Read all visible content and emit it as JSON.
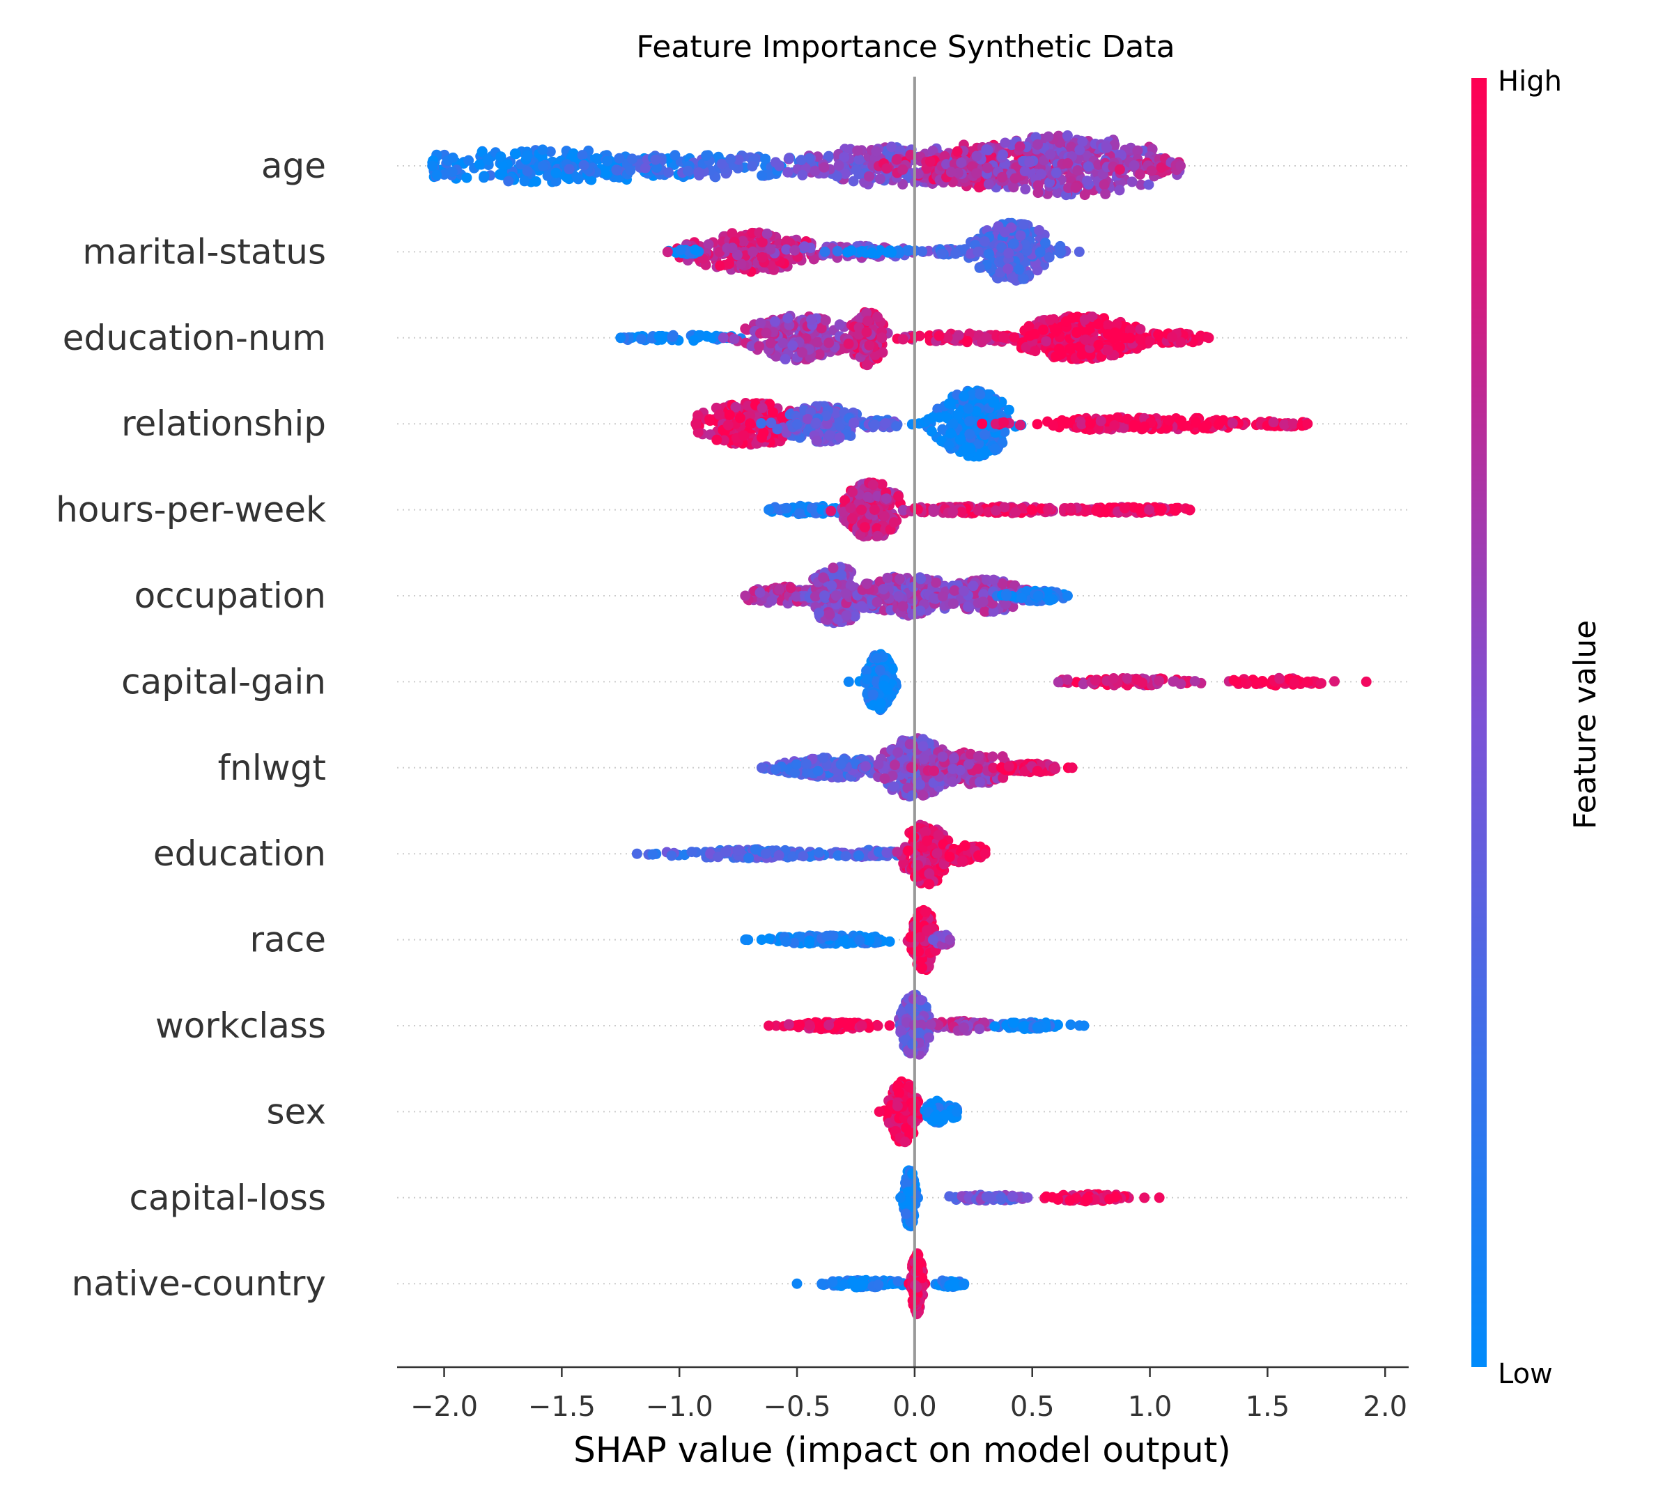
{
  "chart_data": {
    "type": "scatter",
    "subtype": "shap-beeswarm-summary",
    "title": "Feature Importance Synthetic Data",
    "xlabel": "SHAP value (impact on model output)",
    "ylabel": "",
    "xlim": [
      -2.2,
      2.1
    ],
    "xticks": [
      -2.0,
      -1.5,
      -1.0,
      -0.5,
      0.0,
      0.5,
      1.0,
      1.5,
      2.0
    ],
    "xtick_labels": [
      "−2.0",
      "−1.5",
      "−1.0",
      "−0.5",
      "0.0",
      "0.5",
      "1.0",
      "1.5",
      "2.0"
    ],
    "zero_line": 0.0,
    "grid": false,
    "colorbar": {
      "label": "Feature value",
      "high_label": "High",
      "low_label": "Low",
      "low_color": "#008bfb",
      "mid_color": "#7c52d6",
      "high_color": "#ff0052"
    },
    "features": [
      {
        "name": "age",
        "clusters": [
          {
            "center": -1.55,
            "spread": 0.55,
            "width": 0.45,
            "count": 220,
            "color": 0.05
          },
          {
            "center": -0.9,
            "spread": 0.45,
            "width": 0.32,
            "count": 120,
            "color": 0.25
          },
          {
            "center": -0.1,
            "spread": 0.35,
            "width": 0.55,
            "count": 200,
            "color": 0.5
          },
          {
            "center": 0.3,
            "spread": 0.3,
            "width": 0.6,
            "count": 220,
            "color": 0.8
          },
          {
            "center": 0.65,
            "spread": 0.35,
            "width": 0.85,
            "count": 300,
            "color": 0.6
          },
          {
            "center": 1.0,
            "spread": 0.15,
            "width": 0.25,
            "count": 60,
            "color": 0.7
          }
        ],
        "min": -2.05,
        "max": 1.13
      },
      {
        "name": "marital-status",
        "clusters": [
          {
            "center": -0.7,
            "spread": 0.22,
            "width": 0.55,
            "count": 230,
            "color": 0.8
          },
          {
            "center": -0.3,
            "spread": 0.25,
            "width": 0.18,
            "count": 60,
            "color": 0.55
          },
          {
            "center": -0.15,
            "spread": 0.15,
            "width": 0.06,
            "count": 30,
            "color": 0.05
          },
          {
            "center": -0.95,
            "spread": 0.08,
            "width": 0.06,
            "count": 20,
            "color": 0.05
          },
          {
            "center": 0.42,
            "spread": 0.14,
            "width": 0.8,
            "count": 250,
            "color": 0.35
          },
          {
            "center": 0.15,
            "spread": 0.08,
            "width": 0.08,
            "count": 25,
            "color": 0.35
          }
        ],
        "min": -1.05,
        "max": 0.7
      },
      {
        "name": "education-num",
        "clusters": [
          {
            "center": -1.0,
            "spread": 0.25,
            "width": 0.08,
            "count": 50,
            "color": 0.05
          },
          {
            "center": -0.5,
            "spread": 0.18,
            "width": 0.62,
            "count": 230,
            "color": 0.65
          },
          {
            "center": -0.2,
            "spread": 0.06,
            "width": 0.75,
            "count": 120,
            "color": 0.8
          },
          {
            "center": 0.25,
            "spread": 0.25,
            "width": 0.12,
            "count": 70,
            "color": 0.85
          },
          {
            "center": 0.7,
            "spread": 0.22,
            "width": 0.6,
            "count": 300,
            "color": 0.97
          },
          {
            "center": 1.1,
            "spread": 0.12,
            "width": 0.15,
            "count": 60,
            "color": 0.95
          }
        ],
        "min": -1.25,
        "max": 1.25
      },
      {
        "name": "relationship",
        "clusters": [
          {
            "center": -0.7,
            "spread": 0.18,
            "width": 0.6,
            "count": 200,
            "color": 0.9
          },
          {
            "center": -0.4,
            "spread": 0.14,
            "width": 0.5,
            "count": 150,
            "color": 0.4
          },
          {
            "center": -0.15,
            "spread": 0.08,
            "width": 0.12,
            "count": 30,
            "color": 0.35
          },
          {
            "center": 0.25,
            "spread": 0.13,
            "width": 0.92,
            "count": 300,
            "color": 0.04
          },
          {
            "center": 0.95,
            "spread": 0.4,
            "width": 0.18,
            "count": 170,
            "color": 0.97
          },
          {
            "center": 1.55,
            "spread": 0.1,
            "width": 0.08,
            "count": 30,
            "color": 0.97
          }
        ],
        "min": -0.93,
        "max": 1.67
      },
      {
        "name": "hours-per-week",
        "clusters": [
          {
            "center": -0.45,
            "spread": 0.17,
            "width": 0.12,
            "count": 70,
            "color": 0.1
          },
          {
            "center": -0.18,
            "spread": 0.1,
            "width": 0.78,
            "count": 220,
            "color": 0.8
          },
          {
            "center": 0.3,
            "spread": 0.3,
            "width": 0.1,
            "count": 120,
            "color": 0.88
          },
          {
            "center": 0.9,
            "spread": 0.25,
            "width": 0.08,
            "count": 90,
            "color": 0.97
          }
        ],
        "min": -0.62,
        "max": 1.17
      },
      {
        "name": "occupation",
        "clusters": [
          {
            "center": -0.55,
            "spread": 0.14,
            "width": 0.25,
            "count": 80,
            "color": 0.7
          },
          {
            "center": -0.33,
            "spread": 0.1,
            "width": 0.8,
            "count": 180,
            "color": 0.55
          },
          {
            "center": -0.05,
            "spread": 0.2,
            "width": 0.55,
            "count": 200,
            "color": 0.6
          },
          {
            "center": 0.3,
            "spread": 0.15,
            "width": 0.45,
            "count": 150,
            "color": 0.6
          },
          {
            "center": 0.52,
            "spread": 0.1,
            "width": 0.15,
            "count": 60,
            "color": 0.08
          }
        ],
        "min": -0.72,
        "max": 0.65
      },
      {
        "name": "capital-gain",
        "clusters": [
          {
            "center": -0.15,
            "spread": 0.05,
            "width": 0.78,
            "count": 180,
            "color": 0.05
          },
          {
            "center": 0.9,
            "spread": 0.3,
            "width": 0.1,
            "count": 80,
            "color": 0.85
          },
          {
            "center": 1.55,
            "spread": 0.2,
            "width": 0.1,
            "count": 60,
            "color": 0.95
          }
        ],
        "min": -0.28,
        "max": 1.92
      },
      {
        "name": "fnlwgt",
        "clusters": [
          {
            "center": -0.35,
            "spread": 0.2,
            "width": 0.28,
            "count": 180,
            "color": 0.35
          },
          {
            "center": 0.0,
            "spread": 0.12,
            "width": 0.82,
            "count": 260,
            "color": 0.55
          },
          {
            "center": 0.25,
            "spread": 0.15,
            "width": 0.45,
            "count": 150,
            "color": 0.7
          },
          {
            "center": 0.5,
            "spread": 0.1,
            "width": 0.12,
            "count": 60,
            "color": 0.95
          }
        ],
        "min": -0.65,
        "max": 0.67
      },
      {
        "name": "education",
        "clusters": [
          {
            "center": -0.7,
            "spread": 0.3,
            "width": 0.12,
            "count": 120,
            "color": 0.3
          },
          {
            "center": -0.2,
            "spread": 0.12,
            "width": 0.1,
            "count": 50,
            "color": 0.35
          },
          {
            "center": 0.05,
            "spread": 0.08,
            "width": 0.85,
            "count": 230,
            "color": 0.9
          },
          {
            "center": 0.22,
            "spread": 0.08,
            "width": 0.25,
            "count": 60,
            "color": 0.95
          }
        ],
        "min": -1.18,
        "max": 0.3
      },
      {
        "name": "race",
        "clusters": [
          {
            "center": -0.35,
            "spread": 0.22,
            "width": 0.12,
            "count": 140,
            "color": 0.05
          },
          {
            "center": 0.04,
            "spread": 0.04,
            "width": 0.85,
            "count": 200,
            "color": 0.97
          },
          {
            "center": 0.12,
            "spread": 0.03,
            "width": 0.15,
            "count": 30,
            "color": 0.6
          }
        ],
        "min": -0.72,
        "max": 0.15
      },
      {
        "name": "workclass",
        "clusters": [
          {
            "center": -0.35,
            "spread": 0.15,
            "width": 0.1,
            "count": 120,
            "color": 0.95
          },
          {
            "center": 0.0,
            "spread": 0.05,
            "width": 0.85,
            "count": 230,
            "color": 0.45
          },
          {
            "center": 0.2,
            "spread": 0.1,
            "width": 0.15,
            "count": 60,
            "color": 0.7
          },
          {
            "center": 0.5,
            "spread": 0.12,
            "width": 0.1,
            "count": 80,
            "color": 0.06
          }
        ],
        "min": -0.62,
        "max": 0.72
      },
      {
        "name": "sex",
        "clusters": [
          {
            "center": -0.05,
            "spread": 0.05,
            "width": 0.85,
            "count": 200,
            "color": 0.97
          },
          {
            "center": 0.1,
            "spread": 0.04,
            "width": 0.3,
            "count": 90,
            "color": 0.05
          },
          {
            "center": 0.16,
            "spread": 0.03,
            "width": 0.18,
            "count": 20,
            "color": 0.05
          }
        ],
        "min": -0.15,
        "max": 0.18
      },
      {
        "name": "capital-loss",
        "clusters": [
          {
            "center": -0.02,
            "spread": 0.02,
            "width": 0.82,
            "count": 160,
            "color": 0.05
          },
          {
            "center": 0.3,
            "spread": 0.15,
            "width": 0.08,
            "count": 70,
            "color": 0.45
          },
          {
            "center": 0.75,
            "spread": 0.15,
            "width": 0.1,
            "count": 80,
            "color": 0.95
          }
        ],
        "min": -0.06,
        "max": 1.04
      },
      {
        "name": "native-country",
        "clusters": [
          {
            "center": -0.2,
            "spread": 0.15,
            "width": 0.1,
            "count": 90,
            "color": 0.05
          },
          {
            "center": 0.01,
            "spread": 0.02,
            "width": 0.85,
            "count": 160,
            "color": 0.97
          },
          {
            "center": 0.15,
            "spread": 0.05,
            "width": 0.1,
            "count": 35,
            "color": 0.05
          }
        ],
        "min": -0.5,
        "max": 0.21
      }
    ]
  }
}
